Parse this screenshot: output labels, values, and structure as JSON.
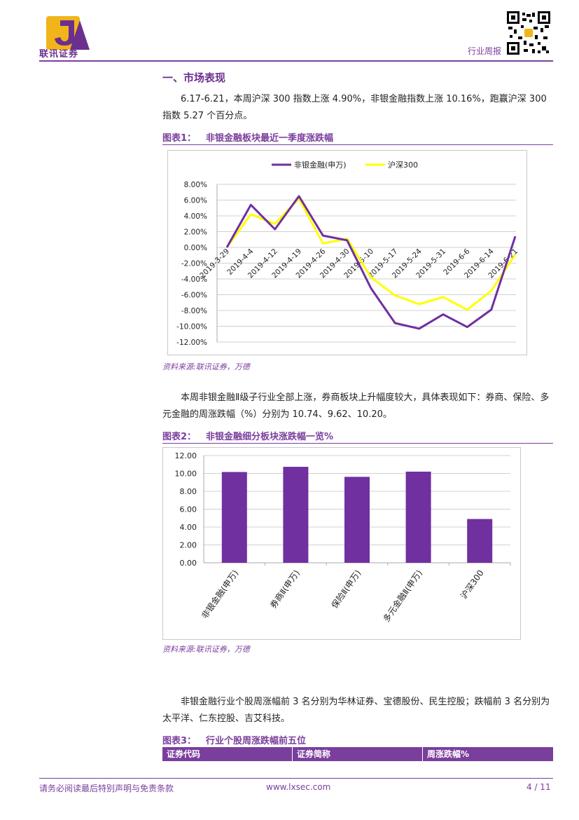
{
  "header": {
    "logo_text": "联讯证券",
    "title": "行业周报"
  },
  "section": {
    "title": "一、市场表现",
    "para1": "6.17-6.21，本周沪深 300 指数上涨 4.90%，非银金融指数上涨 10.16%，跑赢沪深 300 指数 5.27 个百分点。",
    "para2": "本周非银金融Ⅱ级子行业全部上涨，券商板块上升幅度较大，具体表现如下：券商、保险、多元金融的周涨跌幅（%）分别为 10.74、9.62、10.20。",
    "para3": "非银金融行业个股周涨幅前 3 名分别为华林证券、宝德股份、民生控股；跌幅前 3 名分别为太平洋、仁东控股、吉艾科技。"
  },
  "figures": [
    {
      "label": "图表1：",
      "title": "非银金融板块最近一季度涨跌幅",
      "source": "资料来源:联讯证券，万德"
    },
    {
      "label": "图表2：",
      "title": "非银金融细分板块涨跌幅一览%",
      "source": "资料来源:联讯证券，万德"
    },
    {
      "label": "图表3：",
      "title": "行业个股周涨跌幅前五位"
    }
  ],
  "table3": {
    "headers": [
      "证券代码",
      "证券简称",
      "周涨跌幅%"
    ]
  },
  "footer": {
    "disclaimer": "请务必阅读最后特别声明与免责条款",
    "url": "www.lxsec.com",
    "page": "4 / 11"
  },
  "colors": {
    "purple": "#7030a0",
    "yellow": "#ffff00",
    "accent": "#7a3e9d"
  },
  "chart_data": [
    {
      "type": "line",
      "x": [
        "2019-3-29",
        "2019-4-4",
        "2019-4-12",
        "2019-4-19",
        "2019-4-26",
        "2019-4-30",
        "2019-5-10",
        "2019-5-17",
        "2019-5-24",
        "2019-5-31",
        "2019-6-6",
        "2019-6-14",
        "2019-6-21"
      ],
      "series": [
        {
          "name": "非银金融(申万)",
          "color": "#7030a0",
          "values": [
            0.0,
            5.4,
            2.3,
            6.5,
            1.5,
            0.9,
            -5.2,
            -9.6,
            -10.3,
            -8.5,
            -10.1,
            -7.9,
            1.4
          ]
        },
        {
          "name": "沪深300",
          "color": "#ffff00",
          "values": [
            0.0,
            4.2,
            3.0,
            6.2,
            0.5,
            1.1,
            -3.8,
            -6.1,
            -7.2,
            -6.3,
            -7.9,
            -5.5,
            -0.9
          ]
        }
      ],
      "ylim": [
        -12,
        8
      ],
      "yticks": [
        "8.00%",
        "6.00%",
        "4.00%",
        "2.00%",
        "0.00%",
        "-2.00%",
        "-4.00%",
        "-6.00%",
        "-8.00%",
        "-10.00%",
        "-12.00%"
      ],
      "grid": true,
      "legend": "top"
    },
    {
      "type": "bar",
      "categories": [
        "非银金融(申万)",
        "券商Ⅱ(申万)",
        "保险Ⅱ(申万)",
        "多元金融Ⅱ(申万)",
        "沪深300"
      ],
      "values": [
        10.16,
        10.74,
        9.62,
        10.2,
        4.9
      ],
      "color": "#7030a0",
      "ylim": [
        0,
        12
      ],
      "yticks": [
        "12.00",
        "10.00",
        "8.00",
        "6.00",
        "4.00",
        "2.00",
        "0.00"
      ],
      "grid": true
    }
  ]
}
